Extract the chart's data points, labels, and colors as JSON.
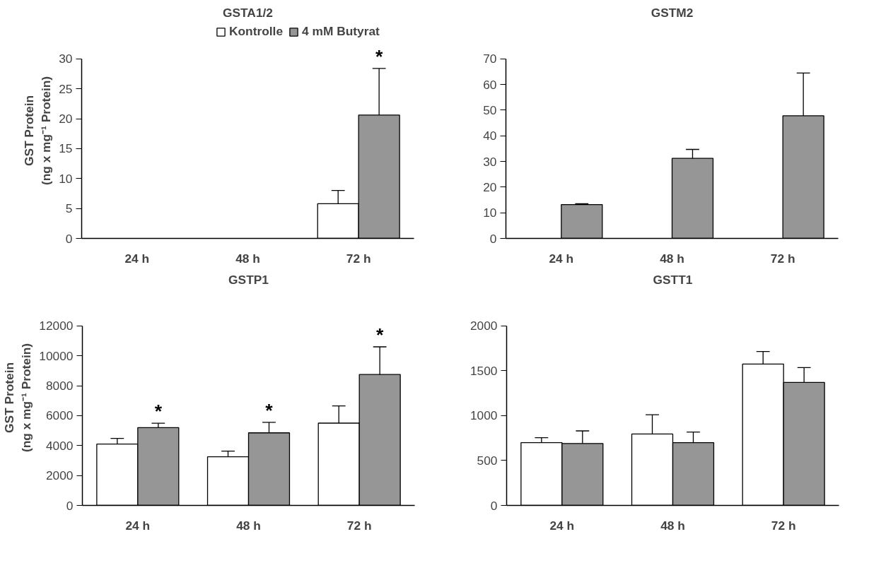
{
  "chart_data": [
    {
      "type": "bar",
      "title": "GSTA1/2",
      "ylabel": "GST Protein\n(ng x mg⁻¹ Protein)",
      "categories": [
        "24 h",
        "48 h",
        "72 h"
      ],
      "ylim": [
        0,
        30
      ],
      "yticks": [
        0,
        5,
        10,
        15,
        20,
        25,
        30
      ],
      "grid": false,
      "legend": "top",
      "series": [
        {
          "name": "Kontrolle",
          "color": "#ffffff",
          "values": [
            null,
            null,
            5.8
          ],
          "errors": [
            null,
            null,
            2.2
          ]
        },
        {
          "name": "4 mM Butyrat",
          "color": "#969696",
          "values": [
            null,
            null,
            20.6
          ],
          "errors": [
            null,
            null,
            7.8
          ]
        }
      ],
      "annotations": [
        {
          "text": "*",
          "x": "72 h",
          "y": 20.6
        }
      ]
    },
    {
      "type": "bar",
      "title": "GSTM2",
      "categories": [
        "24 h",
        "48 h",
        "72 h"
      ],
      "ylim": [
        0,
        70
      ],
      "yticks": [
        0,
        10,
        20,
        30,
        40,
        50,
        60,
        70
      ],
      "grid": false,
      "series": [
        {
          "color": "#ffffff",
          "values": [
            null,
            null,
            null
          ]
        },
        {
          "color": "#969696",
          "values": [
            13.2,
            31.2,
            47.8
          ],
          "errors": [
            0.3,
            3.5,
            16.7
          ]
        }
      ]
    },
    {
      "type": "bar",
      "title": "GSTP1",
      "ylabel": "GST Protein\n(ng x mg⁻¹ Protein)",
      "categories": [
        "24 h",
        "48 h",
        "72 h"
      ],
      "ylim": [
        0,
        12000
      ],
      "yticks": [
        0,
        2000,
        4000,
        6000,
        8000,
        10000,
        12000
      ],
      "grid": false,
      "series": [
        {
          "color": "#ffffff",
          "values": [
            4100,
            3250,
            5500
          ],
          "errors": [
            380,
            380,
            1150
          ]
        },
        {
          "color": "#969696",
          "values": [
            5200,
            4850,
            8750
          ],
          "errors": [
            290,
            700,
            1850
          ]
        }
      ],
      "annotations": [
        {
          "text": "*",
          "x": "24 h",
          "y": 5200
        },
        {
          "text": "*",
          "x": "48 h",
          "y": 4850
        },
        {
          "text": "*",
          "x": "72 h",
          "y": 8750
        }
      ]
    },
    {
      "type": "bar",
      "title": "GSTT1",
      "categories": [
        "24 h",
        "48 h",
        "72 h"
      ],
      "ylim": [
        0,
        2000
      ],
      "yticks": [
        0,
        500,
        1000,
        1500,
        2000
      ],
      "grid": false,
      "series": [
        {
          "color": "#ffffff",
          "values": [
            700,
            795,
            1575
          ],
          "errors": [
            55,
            215,
            140
          ]
        },
        {
          "color": "#969696",
          "values": [
            690,
            700,
            1370
          ],
          "errors": [
            140,
            118,
            165
          ]
        }
      ]
    }
  ]
}
